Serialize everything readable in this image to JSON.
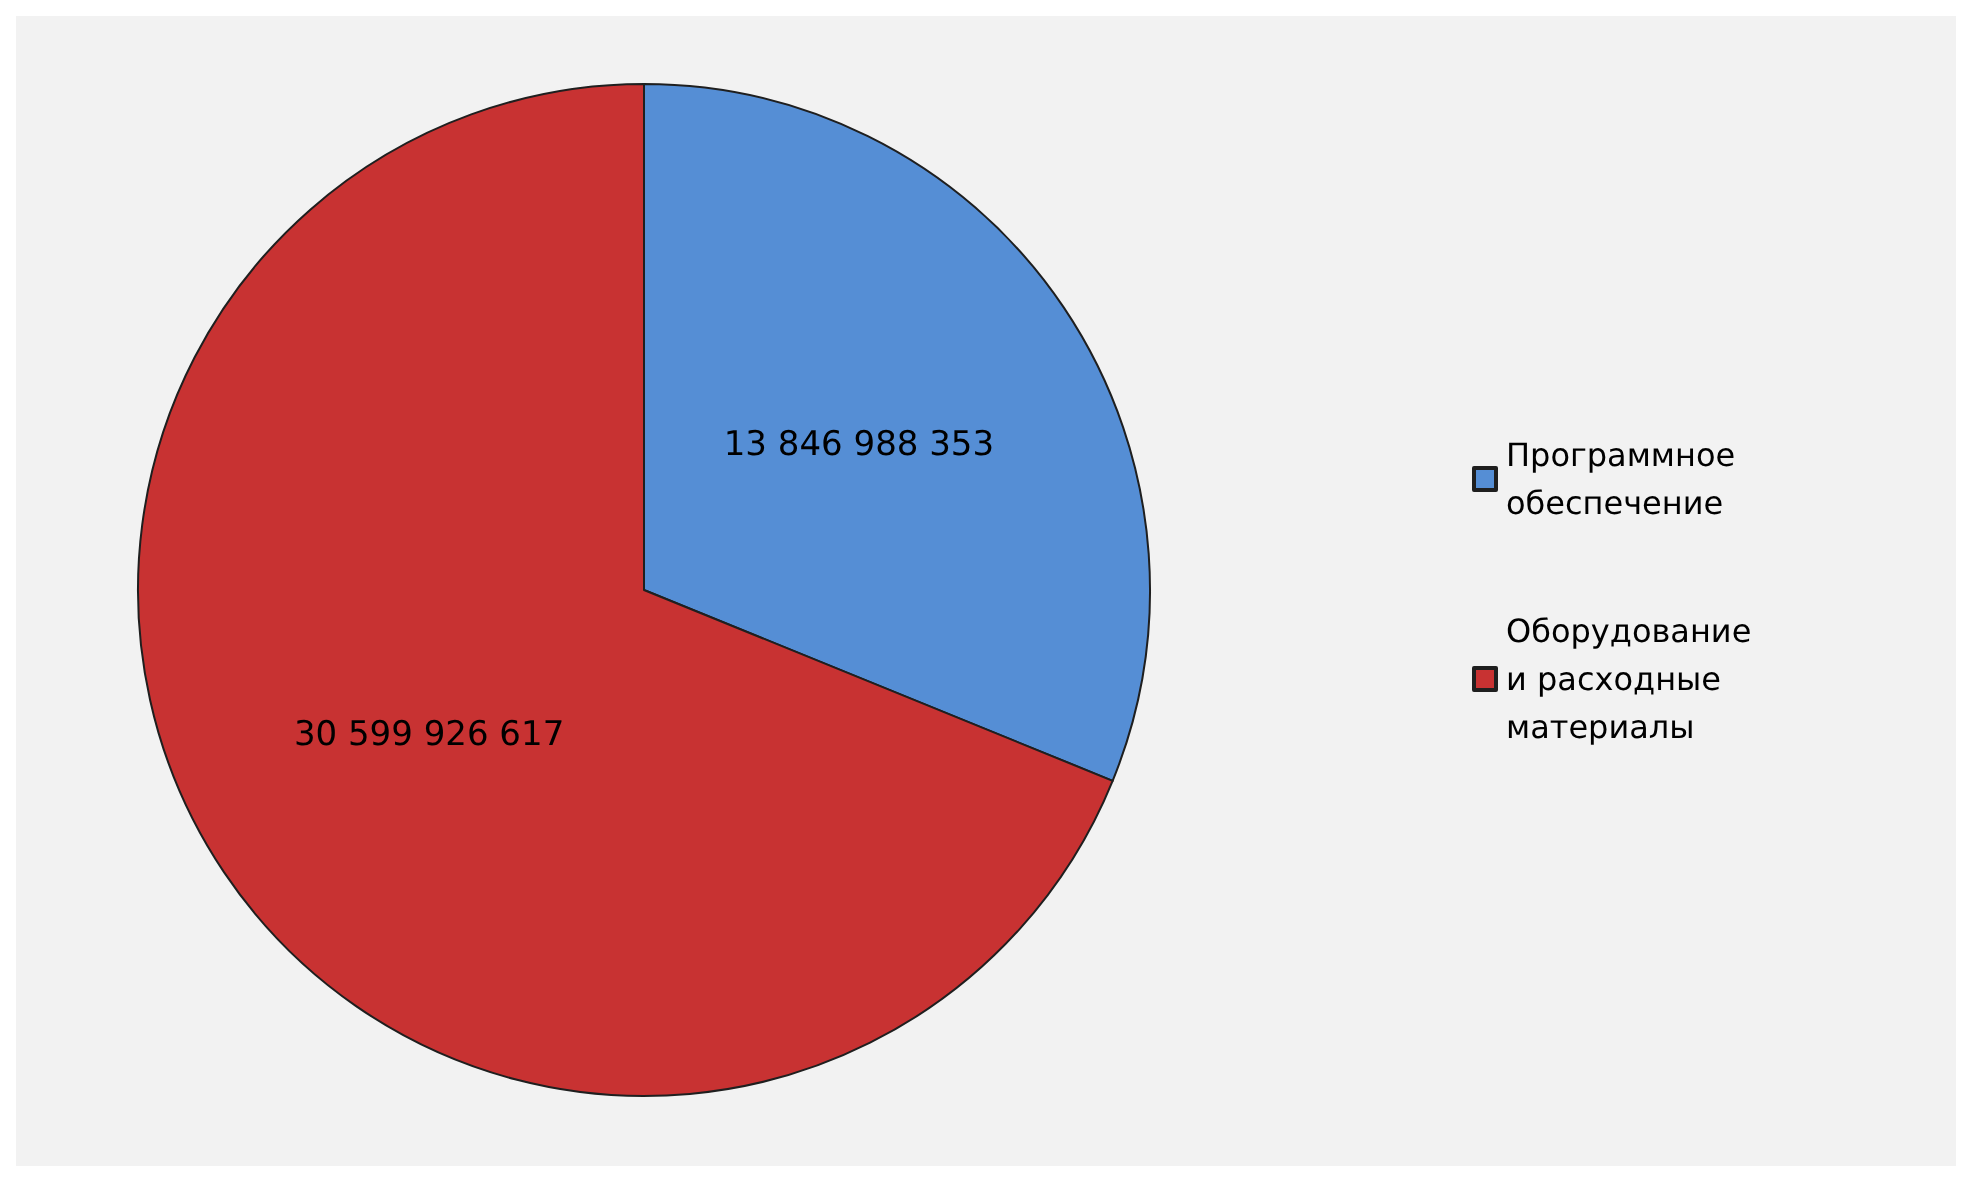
{
  "chart_data": {
    "type": "pie",
    "categories": [
      "Программное обеспечение",
      "Оборудование и расходные материалы"
    ],
    "values": [
      13846988353,
      30599926617
    ],
    "value_labels": [
      "13 846 988 353",
      "30 599 926 617"
    ],
    "colors": [
      "#558ed5",
      "#c83232"
    ],
    "legend": "right"
  }
}
